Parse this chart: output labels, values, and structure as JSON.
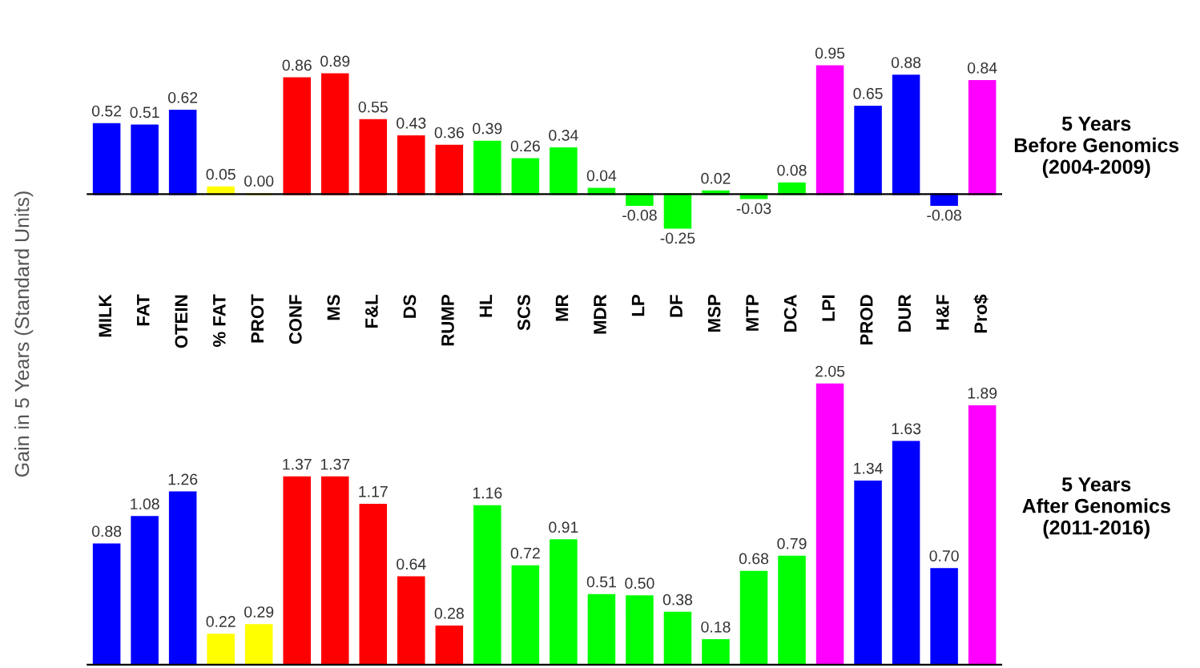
{
  "chart_data": [
    {
      "type": "bar",
      "annotations": [
        "5 Years\nBefore Genomics\n(2004-2009)"
      ],
      "ylabel": "Gain in 5 Years (Standard Units)",
      "data_labels": true,
      "tick_labels": "x",
      "grid": false,
      "legend": false,
      "categories": [
        "MILK",
        "FAT",
        "OTEIN",
        "% FAT",
        "PROT",
        "CONF",
        "MS",
        "F&L",
        "DS",
        "RUMP",
        "HL",
        "SCS",
        "MR",
        "MDR",
        "LP",
        "DF",
        "MSP",
        "MTP",
        "DCA",
        "LPI",
        "PROD",
        "DUR",
        "H&F",
        "Pro$"
      ],
      "value_labels": [
        "0.52",
        "0.51",
        "0.62",
        "0.05",
        "0.00",
        "0.86",
        "0.89",
        "0.55",
        "0.43",
        "0.36",
        "0.39",
        "0.26",
        "0.34",
        "0.04",
        "-0.08",
        "-0.25",
        "0.02",
        "-0.03",
        "0.08",
        "0.95",
        "0.65",
        "0.88",
        "-0.08",
        "0.84"
      ],
      "values": [
        0.52,
        0.51,
        0.62,
        0.05,
        0.0,
        0.86,
        0.89,
        0.55,
        0.43,
        0.36,
        0.39,
        0.26,
        0.34,
        0.04,
        -0.08,
        -0.25,
        0.02,
        -0.03,
        0.08,
        0.95,
        0.65,
        0.88,
        -0.08,
        0.84
      ],
      "colors": [
        "#0000ff",
        "#0000ff",
        "#0000ff",
        "#ffff00",
        "#ffff00",
        "#ff0000",
        "#ff0000",
        "#ff0000",
        "#ff0000",
        "#ff0000",
        "#00ff00",
        "#00ff00",
        "#00ff00",
        "#00ff00",
        "#00ff00",
        "#00ff00",
        "#00ff00",
        "#00ff00",
        "#00ff00",
        "#ff00ff",
        "#0000ff",
        "#0000ff",
        "#0000ff",
        "#ff00ff"
      ]
    },
    {
      "type": "bar",
      "annotations": [
        "5 Years\nAfter Genomics\n(2011-2016)"
      ],
      "data_labels": true,
      "tick_labels": false,
      "grid": false,
      "legend": false,
      "categories": [
        null,
        null,
        null,
        null,
        null,
        null,
        null,
        null,
        null,
        null,
        null,
        null,
        null,
        null,
        null,
        null,
        null,
        null,
        null,
        null,
        null,
        null,
        null,
        null
      ],
      "value_labels": [
        "0.88",
        "1.08",
        "1.26",
        "0.22",
        "0.29",
        "1.37",
        "1.37",
        "1.17",
        "0.64",
        "0.28",
        "1.16",
        "0.72",
        "0.91",
        "0.51",
        "0.50",
        "0.38",
        "0.18",
        "0.68",
        "0.79",
        "2.05",
        "1.34",
        "1.63",
        "0.70",
        "1.89"
      ],
      "values": [
        0.88,
        1.08,
        1.26,
        0.22,
        0.29,
        1.37,
        1.37,
        1.17,
        0.64,
        0.28,
        1.16,
        0.72,
        0.91,
        0.51,
        0.5,
        0.38,
        0.18,
        0.68,
        0.79,
        2.05,
        1.34,
        1.63,
        0.7,
        1.89
      ],
      "colors": [
        "#0000ff",
        "#0000ff",
        "#0000ff",
        "#ffff00",
        "#ffff00",
        "#ff0000",
        "#ff0000",
        "#ff0000",
        "#ff0000",
        "#ff0000",
        "#00ff00",
        "#00ff00",
        "#00ff00",
        "#00ff00",
        "#00ff00",
        "#00ff00",
        "#00ff00",
        "#00ff00",
        "#00ff00",
        "#ff00ff",
        "#0000ff",
        "#0000ff",
        "#0000ff",
        "#ff00ff"
      ]
    }
  ]
}
